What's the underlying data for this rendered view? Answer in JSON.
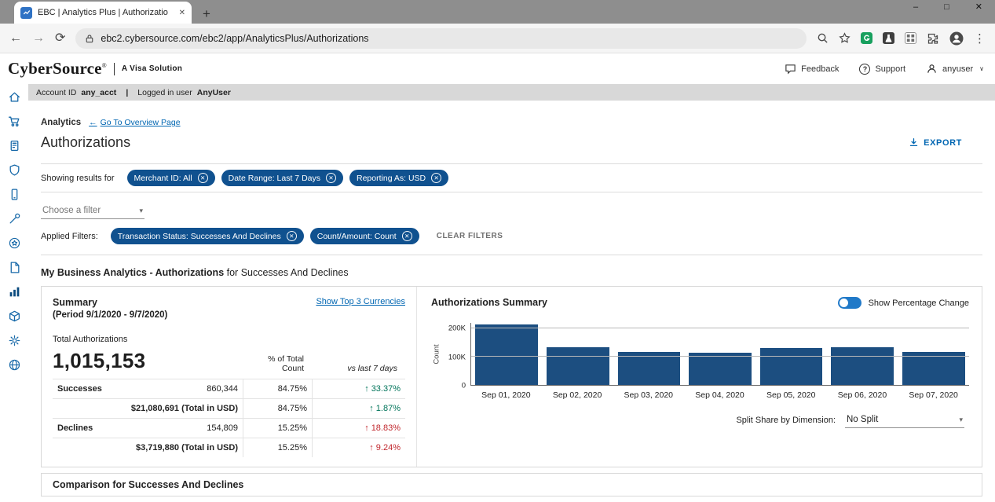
{
  "colors": {
    "chip_bg": "#10518f",
    "bar": "#1c4e80",
    "link": "#0066b2",
    "good": "#00745a",
    "bad": "#c1272d",
    "toggle": "#2079c8",
    "sidebar_icon": "#1668a8"
  },
  "browser": {
    "tab_title": "EBC | Analytics Plus | Authorizatio",
    "url": "ebc2.cybersource.com/ebc2/app/AnalyticsPlus/Authorizations"
  },
  "header": {
    "logo": "CyberSource",
    "registered": "®",
    "tagline": "A Visa Solution",
    "feedback_label": "Feedback",
    "support_label": "Support",
    "username": "anyuser"
  },
  "account_bar": {
    "account_id_label": "Account ID",
    "account_id_value": "any_acct",
    "separator": "|",
    "logged_in_label": "Logged in user",
    "logged_in_value": "AnyUser"
  },
  "page": {
    "section_label": "Analytics",
    "overview_link": "Go To Overview Page",
    "title": "Authorizations",
    "export_label": "EXPORT"
  },
  "filters": {
    "showing_label": "Showing results for",
    "chips": [
      "Merchant ID: All",
      "Date Range: Last 7 Days",
      "Reporting As: USD"
    ],
    "choose_filter_placeholder": "Choose a filter",
    "applied_label": "Applied Filters:",
    "applied_chips": [
      "Transaction Status: Successes And Declines",
      "Count/Amount: Count"
    ],
    "clear_filters_label": "CLEAR FILTERS"
  },
  "section": {
    "title_strong": "My Business Analytics - Authorizations",
    "title_rest": " for Successes And Declines"
  },
  "summary": {
    "title": "Summary",
    "period": "(Period  9/1/2020 - 9/7/2020)",
    "currencies_link": "Show Top 3 Currencies",
    "total_label": "Total Authorizations",
    "total_value": "1,015,153",
    "col_pct": "% of Total Count",
    "col_vs": "vs last 7 days",
    "rows": [
      {
        "label": "Successes",
        "value": "860,344",
        "pct": "84.75%",
        "delta": "33.37%",
        "tone": "good",
        "money": false
      },
      {
        "label": "",
        "value": "$21,080,691 (Total in USD)",
        "pct": "84.75%",
        "delta": "1.87%",
        "tone": "good",
        "money": true
      },
      {
        "label": "Declines",
        "value": "154,809",
        "pct": "15.25%",
        "delta": "18.83%",
        "tone": "bad",
        "money": false
      },
      {
        "label": "",
        "value": "$3,719,880 (Total in USD)",
        "pct": "15.25%",
        "delta": "9.24%",
        "tone": "bad",
        "money": true
      }
    ]
  },
  "chart": {
    "title": "Authorizations Summary",
    "toggle_label": "Show Percentage Change",
    "split_label": "Split Share by Dimension:",
    "split_value": "No Split"
  },
  "chart_data": {
    "type": "bar",
    "title": "Authorizations Summary",
    "xlabel": "",
    "ylabel": "Count",
    "categories": [
      "Sep 01, 2020",
      "Sep 02, 2020",
      "Sep 03, 2020",
      "Sep 04, 2020",
      "Sep 05, 2020",
      "Sep 06, 2020",
      "Sep 07, 2020"
    ],
    "values": [
      215000,
      135000,
      118000,
      113000,
      131000,
      133000,
      118000
    ],
    "ylim": [
      0,
      220000
    ],
    "yticks": [
      {
        "value": 0,
        "label": "0"
      },
      {
        "value": 100000,
        "label": "100K"
      },
      {
        "value": 200000,
        "label": "200K"
      }
    ],
    "gridlines": [
      100000,
      200000
    ],
    "grid": true,
    "legend_position": "none"
  },
  "bottom_section": {
    "title": "Comparison for Successes And Declines"
  },
  "icons": {
    "overview_arrow": "←",
    "chip_close": "✕",
    "caret_down": "▾",
    "up_arrow": "↑",
    "kebab": "⋮",
    "user_caret": "∨",
    "new_tab": "+",
    "minimize": "–",
    "maximize": "□",
    "close": "✕",
    "back_arrow": "←",
    "forward_arrow": "→",
    "refresh": "⟳"
  }
}
